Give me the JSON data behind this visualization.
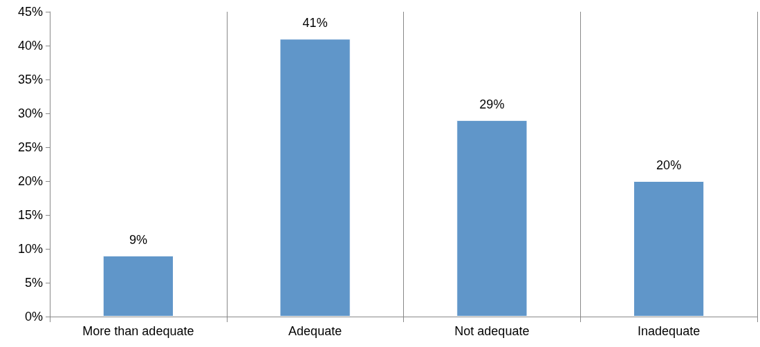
{
  "chart_data": {
    "type": "bar",
    "categories": [
      "More than adequate",
      "Adequate",
      "Not adequate",
      "Inadequate"
    ],
    "values": [
      9,
      41,
      29,
      20
    ],
    "value_labels": [
      "9%",
      "41%",
      "29%",
      "20%"
    ],
    "color": "#6096c9",
    "ylim": [
      0,
      45
    ],
    "yticks": [
      {
        "value": 0,
        "label": "0%"
      },
      {
        "value": 5,
        "label": "5%"
      },
      {
        "value": 10,
        "label": "10%"
      },
      {
        "value": 15,
        "label": "15%"
      },
      {
        "value": 20,
        "label": "20%"
      },
      {
        "value": 25,
        "label": "25%"
      },
      {
        "value": 30,
        "label": "30%"
      },
      {
        "value": 35,
        "label": "35%"
      },
      {
        "value": 40,
        "label": "40%"
      },
      {
        "value": 45,
        "label": "45%"
      }
    ],
    "grid": "x"
  }
}
